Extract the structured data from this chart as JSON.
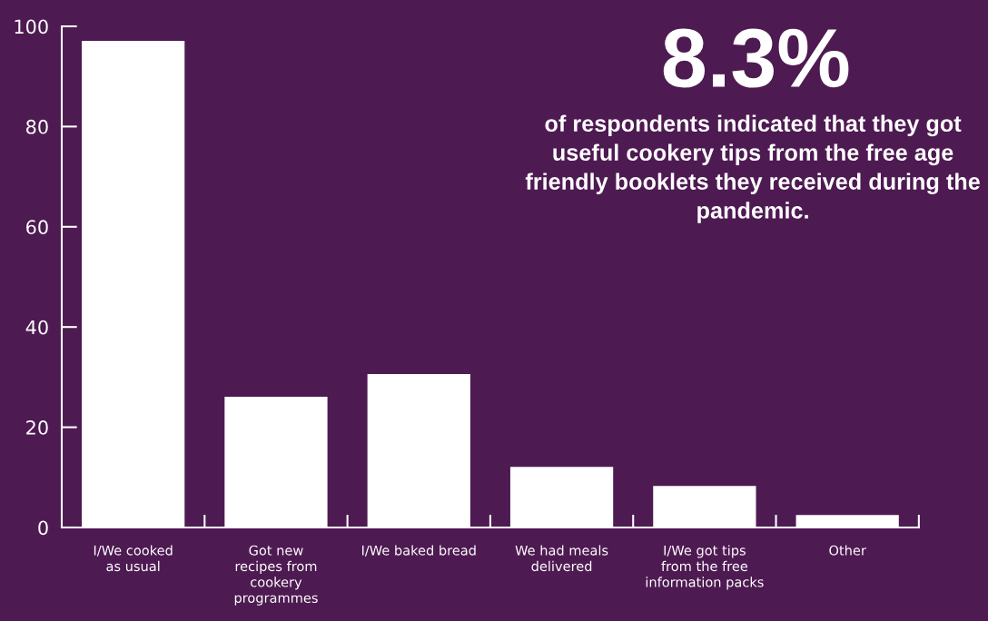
{
  "chart_data": {
    "type": "bar",
    "categories": [
      "I/We cooked\nas usual",
      "Got new\nrecipes from\ncookery\nprogrammes",
      "I/We baked bread",
      "We had meals\ndelivered",
      "I/We got tips\nfrom the free\ninformation packs",
      "Other"
    ],
    "values": [
      97.1,
      26.1,
      30.6,
      12.1,
      8.3,
      2.5
    ],
    "color": "#ffffff",
    "ylim": [
      0,
      100
    ],
    "yticks": [
      0,
      20,
      40,
      60,
      80,
      100
    ],
    "grid": false,
    "annotations": [
      "8.3%",
      "of respondents indicated that they got useful cookery tips from the free age friendly booklets they received during the pandemic."
    ]
  }
}
